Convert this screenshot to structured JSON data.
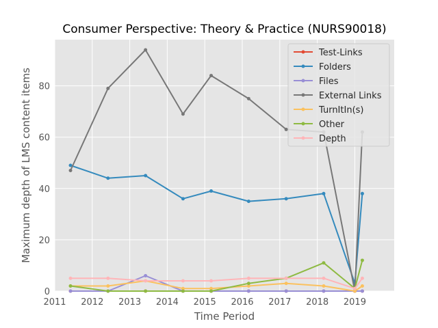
{
  "chart_data": {
    "type": "line",
    "title": "Consumer Perspective: Theory & Practice (NURS90018)",
    "xlabel": "Time Period",
    "ylabel": "Maximum depth of LMS content items",
    "xlim": [
      2011,
      2020.05
    ],
    "ylim": [
      0,
      98
    ],
    "x_ticks": [
      "2011",
      "2012",
      "2013",
      "2014",
      "2015",
      "2016",
      "2017",
      "2018",
      "2019"
    ],
    "y_ticks": [
      "0",
      "20",
      "40",
      "60",
      "80"
    ],
    "grid": true,
    "legend_position": "top-right",
    "x": [
      2011.42,
      2012.42,
      2013.42,
      2014.42,
      2015.17,
      2016.17,
      2017.17,
      2018.17,
      2019.0,
      2019.2
    ],
    "series": [
      {
        "name": "Test-Links",
        "color": "#E24A33",
        "values": [
          0,
          0,
          0,
          0,
          0,
          0,
          0,
          0,
          0,
          0
        ]
      },
      {
        "name": "Folders",
        "color": "#348ABD",
        "values": [
          49,
          44,
          45,
          36,
          39,
          35,
          36,
          38,
          3,
          38
        ]
      },
      {
        "name": "Files",
        "color": "#988ED5",
        "values": [
          0,
          0,
          6,
          0,
          0,
          0,
          0,
          0,
          0,
          0
        ]
      },
      {
        "name": "External Links",
        "color": "#777777",
        "values": [
          47,
          79,
          94,
          69,
          84,
          75,
          63,
          62,
          0,
          62
        ]
      },
      {
        "name": "TurnItIn(s)",
        "color": "#FBC15E",
        "values": [
          2,
          2,
          4,
          1,
          1,
          2,
          3,
          2,
          0,
          2
        ]
      },
      {
        "name": "Other",
        "color": "#8EBA42",
        "values": [
          2,
          0,
          0,
          0,
          0,
          3,
          5,
          11,
          1,
          12
        ]
      },
      {
        "name": "Depth",
        "color": "#FFB5B8",
        "values": [
          5,
          5,
          4,
          4,
          4,
          5,
          5,
          5,
          1,
          5
        ]
      }
    ]
  }
}
